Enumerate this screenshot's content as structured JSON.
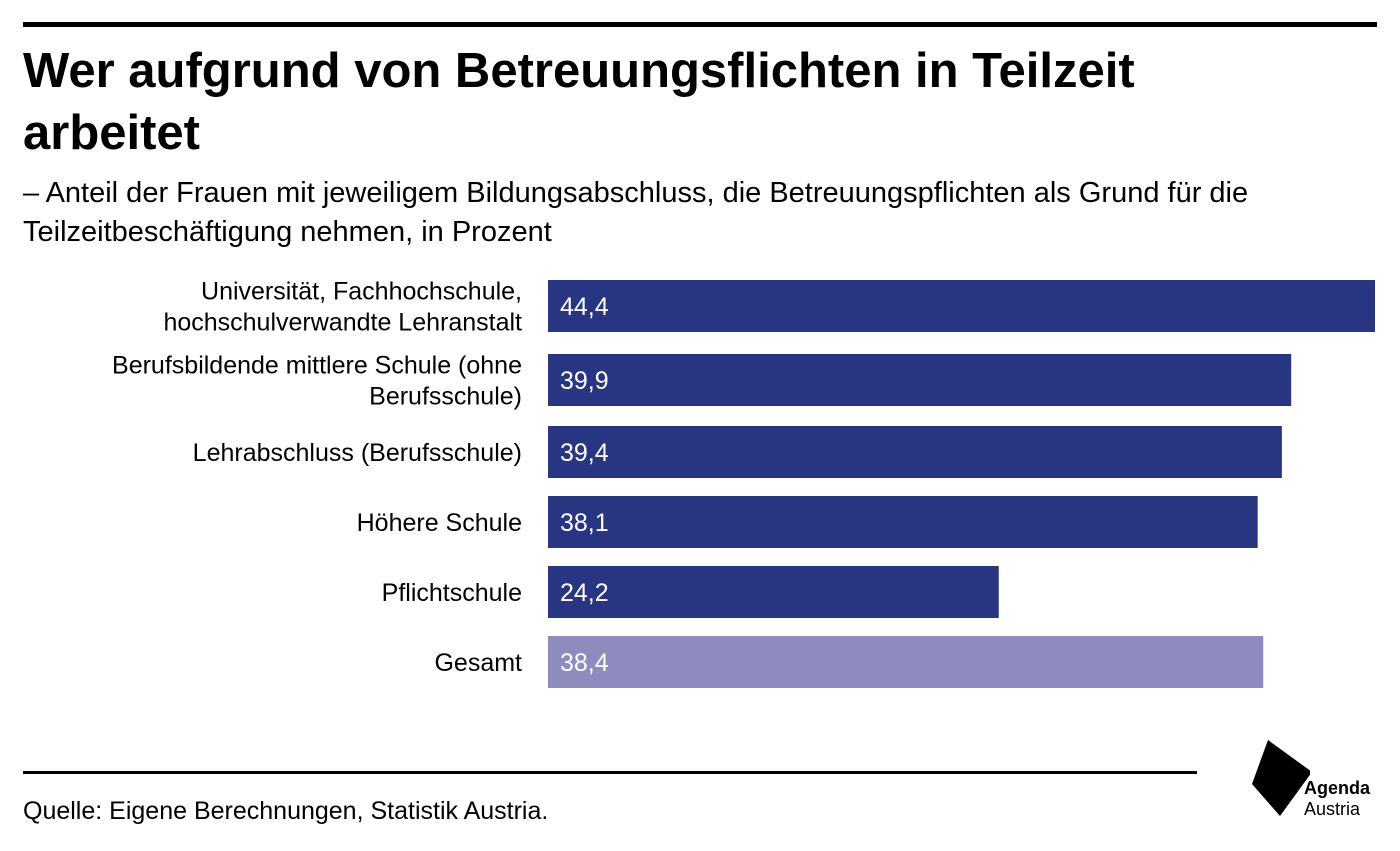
{
  "title": "Wer aufgrund von Betreuungsflichten in Teilzeit arbeitet",
  "subtitle": "– Anteil der Frauen mit jeweiligem Bildungsabschluss, die Betreuungspflichten als Grund für die Teilzeitbeschäftigung nehmen, in Prozent",
  "source": "Quelle: Eigene Berechnungen, Statistik Austria.",
  "logo": {
    "line1": "Agenda",
    "line2": "Austria"
  },
  "colors": {
    "bar": "#283583",
    "bar_total": "#8e8cbf",
    "value_text": "#ffffff"
  },
  "chart_data": {
    "type": "bar",
    "orientation": "horizontal",
    "categories": [
      [
        "Universität, Fachhochschule,",
        "hochschulverwandte Lehranstalt"
      ],
      [
        "Berufsbildende mittlere Schule (ohne",
        "Berufsschule)"
      ],
      [
        "Lehrabschluss (Berufsschule)"
      ],
      [
        "Höhere Schule"
      ],
      [
        "Pflichtschule"
      ],
      [
        "Gesamt"
      ]
    ],
    "values": [
      44.4,
      39.9,
      39.4,
      38.1,
      24.2,
      38.4
    ],
    "value_labels": [
      "44,4",
      "39,9",
      "39,4",
      "38,1",
      "24,2",
      "38,4"
    ],
    "highlight": [
      false,
      false,
      false,
      false,
      false,
      true
    ],
    "xlim": [
      0,
      44.4
    ],
    "grid": false,
    "legend": "none"
  }
}
